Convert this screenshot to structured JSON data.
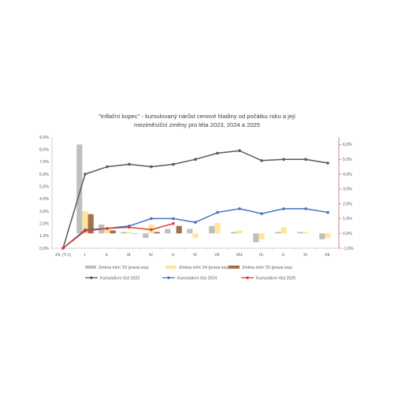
{
  "chart_data": {
    "type": "bar",
    "title_line1": "\"Inflační kopec\" - kumulovaný nárůst cenové hladiny od počátku roku a její",
    "title_line2": "meziměsíční změny pro léta 2023, 2024 a 2025",
    "categories": [
      "XII. (Y-1)",
      "I.",
      "II.",
      "III.",
      "IV.",
      "V.",
      "VI.",
      "VII.",
      "VIII.",
      "IX.",
      "X.",
      "XI.",
      "XII."
    ],
    "left_axis": {
      "ylim": [
        0,
        9
      ],
      "tick_labels": [
        "0,0%",
        "1,0%",
        "2,0%",
        "3,0%",
        "4,0%",
        "5,0%",
        "6,0%",
        "7,0%",
        "8,0%",
        "9,0%"
      ]
    },
    "right_axis": {
      "ylim": [
        -1,
        6.5
      ],
      "tick_labels": [
        "-1,0%",
        "0,0%",
        "1,0%",
        "2,0%",
        "3,0%",
        "4,0%",
        "5,0%",
        "6,0%"
      ],
      "color": "#c0504d"
    },
    "bar_series": [
      {
        "name": "Změna m/m '23 (pravá osa)",
        "axis": "right",
        "color": "#bfbfbf",
        "values": [
          null,
          6.0,
          0.6,
          0.1,
          -0.3,
          0.3,
          0.3,
          0.5,
          0.1,
          -0.6,
          0.1,
          0.1,
          -0.4
        ]
      },
      {
        "name": "Změna m/m '24 (pravá osa)",
        "axis": "right",
        "color": "#ffe699",
        "values": [
          null,
          1.5,
          0.3,
          0.1,
          0.6,
          0.0,
          -0.3,
          0.7,
          0.2,
          -0.4,
          0.4,
          0.1,
          -0.3
        ]
      },
      {
        "name": "Změna m/m '25 (pravá osa)",
        "axis": "right",
        "color": "#a0714f",
        "values": [
          null,
          1.3,
          0.2,
          0.0,
          0.1,
          0.5,
          null,
          null,
          null,
          null,
          null,
          null,
          null
        ]
      }
    ],
    "line_series": [
      {
        "name": "Kumulativní růst 2023",
        "axis": "left",
        "color": "#595959",
        "values": [
          0.0,
          6.0,
          6.6,
          6.8,
          6.6,
          6.8,
          7.2,
          7.7,
          7.9,
          7.1,
          7.2,
          7.2,
          6.9
        ]
      },
      {
        "name": "Kumulativní  růst 2024",
        "axis": "left",
        "color": "#4472c4",
        "values": [
          0.0,
          1.5,
          1.6,
          1.8,
          2.4,
          2.4,
          2.1,
          2.9,
          3.2,
          2.8,
          3.2,
          3.2,
          2.9
        ]
      },
      {
        "name": "Kumulativní růst 2025",
        "axis": "left",
        "color": "#e03c31",
        "values": [
          0.0,
          1.4,
          1.6,
          1.7,
          1.5,
          2.0,
          null,
          null,
          null,
          null,
          null,
          null,
          null
        ]
      }
    ],
    "grid": false,
    "legend_position": "bottom"
  }
}
